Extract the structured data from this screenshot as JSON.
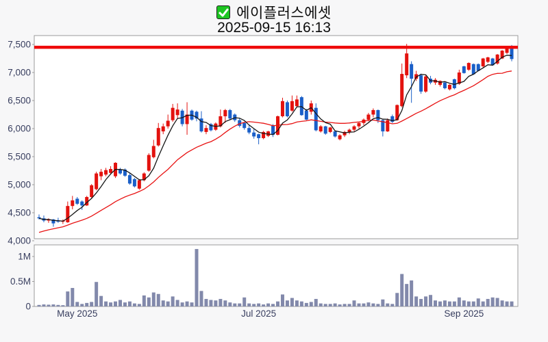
{
  "chart_data": {
    "type": "candlestick",
    "title": "에이플러스에셋",
    "timestamp": "2025-09-15 16:13",
    "checkbox_checked": true,
    "price_axis": {
      "ticks": [
        4000,
        4500,
        5000,
        5500,
        6000,
        6500,
        7000,
        7500
      ],
      "tick_labels": [
        "4,000",
        "4,500",
        "5,000",
        "5,500",
        "6,000",
        "6,500",
        "7,000",
        "7,500"
      ],
      "min": 4000,
      "max": 7660,
      "grid": false
    },
    "volume_axis": {
      "ticks": [
        {
          "value": 0,
          "label": "0"
        },
        {
          "value": 500000,
          "label": "0.5M"
        },
        {
          "value": 1000000,
          "label": "1M"
        }
      ],
      "max": 1230000
    },
    "x_ticks": [
      {
        "index": 8,
        "label": "May 2025"
      },
      {
        "index": 46,
        "label": "Jul 2025"
      },
      {
        "index": 89,
        "label": "Sep 2025"
      }
    ],
    "horizontal_line": {
      "value": 7450,
      "color": "#ee0a0a"
    },
    "moving_averages": {
      "short": {
        "period": 5,
        "color": "#151515"
      },
      "long": {
        "period": 20,
        "color": "#e81212",
        "left_anchor": 4150
      }
    },
    "colors": {
      "up_candle": "#e3120e",
      "down_candle": "#1a5fc8",
      "volume_bar": "#8289ab",
      "axis_label": "#373d5e",
      "panel_border": "#9b9b9b",
      "panel_bg": "#ffffff",
      "page_bg": "#f7f7f8"
    },
    "candles_columns": [
      "date",
      "open",
      "high",
      "low",
      "close",
      "volume"
    ],
    "candles": [
      [
        "2025-04-21",
        4420,
        4470,
        4380,
        4400,
        30000
      ],
      [
        "2025-04-22",
        4400,
        4450,
        4330,
        4360,
        40000
      ],
      [
        "2025-04-23",
        4360,
        4400,
        4320,
        4380,
        35000
      ],
      [
        "2025-04-24",
        4380,
        4390,
        4250,
        4310,
        40000
      ],
      [
        "2025-04-25",
        4360,
        4410,
        4320,
        4340,
        30000
      ],
      [
        "2025-04-28",
        4340,
        4380,
        4300,
        4360,
        25000
      ],
      [
        "2025-04-29",
        4330,
        4700,
        4320,
        4620,
        300000
      ],
      [
        "2025-04-30",
        4620,
        4800,
        4560,
        4720,
        370000
      ],
      [
        "2025-05-02",
        4750,
        4780,
        4640,
        4660,
        90000
      ],
      [
        "2025-05-07",
        4700,
        4720,
        4550,
        4630,
        50000
      ],
      [
        "2025-05-08",
        4630,
        4800,
        4620,
        4780,
        70000
      ],
      [
        "2025-05-09",
        4780,
        5010,
        4760,
        4990,
        90000
      ],
      [
        "2025-05-12",
        4920,
        5230,
        4900,
        5200,
        490000
      ],
      [
        "2025-05-13",
        5150,
        5280,
        5080,
        5230,
        210000
      ],
      [
        "2025-05-14",
        5180,
        5300,
        5150,
        5260,
        100000
      ],
      [
        "2025-05-15",
        5210,
        5330,
        5180,
        5280,
        80000
      ],
      [
        "2025-05-16",
        5150,
        5400,
        5120,
        5390,
        100000
      ],
      [
        "2025-05-19",
        5270,
        5300,
        5180,
        5200,
        130000
      ],
      [
        "2025-05-20",
        5270,
        5290,
        5140,
        5160,
        80000
      ],
      [
        "2025-05-21",
        5170,
        5200,
        5000,
        5020,
        100000
      ],
      [
        "2025-05-22",
        5100,
        5120,
        4950,
        4970,
        60000
      ],
      [
        "2025-05-23",
        4930,
        5100,
        4910,
        5080,
        50000
      ],
      [
        "2025-05-26",
        5080,
        5220,
        5060,
        5200,
        220000
      ],
      [
        "2025-05-27",
        5250,
        5560,
        5230,
        5530,
        180000
      ],
      [
        "2025-05-28",
        5490,
        5800,
        5470,
        5690,
        280000
      ],
      [
        "2025-05-29",
        5700,
        6100,
        5680,
        6010,
        250000
      ],
      [
        "2025-05-30",
        5950,
        6090,
        5900,
        6040,
        120000
      ],
      [
        "2025-06-02",
        6040,
        6250,
        6000,
        6140,
        100000
      ],
      [
        "2025-06-04",
        6150,
        6440,
        6120,
        6370,
        200000
      ],
      [
        "2025-06-05",
        6240,
        6450,
        6180,
        6340,
        130000
      ],
      [
        "2025-06-09",
        6320,
        6350,
        6040,
        6080,
        80000
      ],
      [
        "2025-06-10",
        6080,
        6470,
        5890,
        6250,
        100000
      ],
      [
        "2025-06-11",
        6320,
        6340,
        6140,
        6160,
        80000
      ],
      [
        "2025-06-12",
        6300,
        6320,
        6130,
        6180,
        1150000
      ],
      [
        "2025-06-13",
        6180,
        6310,
        5930,
        5950,
        310000
      ],
      [
        "2025-06-16",
        5940,
        6060,
        5900,
        6010,
        150000
      ],
      [
        "2025-06-17",
        6080,
        6100,
        5950,
        5970,
        130000
      ],
      [
        "2025-06-18",
        5980,
        6110,
        5960,
        6090,
        120000
      ],
      [
        "2025-06-19",
        6040,
        6340,
        6020,
        6220,
        150000
      ],
      [
        "2025-06-20",
        6220,
        6350,
        6100,
        6330,
        120000
      ],
      [
        "2025-06-23",
        6330,
        6350,
        6150,
        6180,
        80000
      ],
      [
        "2025-06-24",
        6250,
        6270,
        6120,
        6150,
        60000
      ],
      [
        "2025-06-25",
        6150,
        6180,
        6020,
        6050,
        60000
      ],
      [
        "2025-06-26",
        6100,
        6120,
        5980,
        6010,
        180000
      ],
      [
        "2025-06-27",
        6010,
        6060,
        5900,
        5930,
        60000
      ],
      [
        "2025-06-30",
        5930,
        5990,
        5820,
        5860,
        50000
      ],
      [
        "2025-07-01",
        5900,
        5910,
        5720,
        5830,
        60000
      ],
      [
        "2025-07-02",
        5830,
        5960,
        5810,
        5940,
        40000
      ],
      [
        "2025-07-03",
        5870,
        5960,
        5850,
        5950,
        60000
      ],
      [
        "2025-07-04",
        6050,
        6080,
        5850,
        5890,
        50000
      ],
      [
        "2025-07-07",
        5890,
        6230,
        5880,
        6220,
        100000
      ],
      [
        "2025-07-08",
        6220,
        6550,
        6200,
        6490,
        240000
      ],
      [
        "2025-07-09",
        6470,
        6500,
        6200,
        6220,
        120000
      ],
      [
        "2025-07-10",
        6320,
        6590,
        6300,
        6490,
        170000
      ],
      [
        "2025-07-11",
        6400,
        6590,
        6380,
        6520,
        120000
      ],
      [
        "2025-07-14",
        6560,
        6580,
        6230,
        6240,
        100000
      ],
      [
        "2025-07-15",
        6320,
        6350,
        6150,
        6160,
        70000
      ],
      [
        "2025-07-16",
        6300,
        6500,
        6250,
        6450,
        90000
      ],
      [
        "2025-07-17",
        6370,
        6450,
        5950,
        5970,
        150000
      ],
      [
        "2025-07-18",
        5950,
        6060,
        5930,
        6040,
        60000
      ],
      [
        "2025-07-21",
        6040,
        6050,
        5890,
        5910,
        50000
      ],
      [
        "2025-07-22",
        5940,
        6030,
        5920,
        6020,
        50000
      ],
      [
        "2025-07-23",
        5950,
        5960,
        5840,
        5860,
        60000
      ],
      [
        "2025-07-24",
        5810,
        5900,
        5790,
        5880,
        40000
      ],
      [
        "2025-07-25",
        5880,
        5960,
        5850,
        5940,
        50000
      ],
      [
        "2025-07-28",
        5940,
        6000,
        5900,
        5980,
        50000
      ],
      [
        "2025-07-29",
        5980,
        6060,
        5950,
        6040,
        120000
      ],
      [
        "2025-07-30",
        6040,
        6120,
        6000,
        6100,
        60000
      ],
      [
        "2025-07-31",
        6100,
        6180,
        6060,
        6160,
        60000
      ],
      [
        "2025-08-01",
        6160,
        6280,
        6130,
        6250,
        80000
      ],
      [
        "2025-08-04",
        6250,
        6360,
        6200,
        6330,
        60000
      ],
      [
        "2025-08-05",
        6330,
        6340,
        6100,
        6150,
        50000
      ],
      [
        "2025-08-06",
        6150,
        6160,
        5860,
        5950,
        140000
      ],
      [
        "2025-08-07",
        5950,
        6180,
        5940,
        6150,
        60000
      ],
      [
        "2025-08-08",
        6220,
        6250,
        6100,
        6120,
        50000
      ],
      [
        "2025-08-11",
        6150,
        6430,
        6140,
        6420,
        270000
      ],
      [
        "2025-08-12",
        6400,
        7160,
        6380,
        6975,
        650000
      ],
      [
        "2025-08-13",
        6950,
        7510,
        6900,
        7340,
        450000
      ],
      [
        "2025-08-14",
        7150,
        7200,
        6460,
        6890,
        520000
      ],
      [
        "2025-08-18",
        6890,
        7030,
        6850,
        6970,
        200000
      ],
      [
        "2025-08-19",
        6950,
        6980,
        6620,
        6660,
        150000
      ],
      [
        "2025-08-20",
        6660,
        6950,
        6640,
        6930,
        200000
      ],
      [
        "2025-08-21",
        6890,
        6940,
        6790,
        6820,
        230000
      ],
      [
        "2025-08-22",
        6820,
        6900,
        6780,
        6870,
        120000
      ],
      [
        "2025-08-25",
        6780,
        6860,
        6750,
        6850,
        100000
      ],
      [
        "2025-08-26",
        6820,
        6840,
        6700,
        6720,
        120000
      ],
      [
        "2025-08-27",
        6700,
        6790,
        6680,
        6780,
        100000
      ],
      [
        "2025-08-28",
        6880,
        6890,
        6700,
        6720,
        100000
      ],
      [
        "2025-08-29",
        6800,
        7050,
        6780,
        7000,
        180000
      ],
      [
        "2025-09-01",
        7110,
        7120,
        6980,
        6990,
        120000
      ],
      [
        "2025-09-02",
        7050,
        7180,
        7030,
        7170,
        100000
      ],
      [
        "2025-09-03",
        7150,
        7160,
        6960,
        6970,
        100000
      ],
      [
        "2025-09-04",
        7150,
        7160,
        7020,
        7030,
        160000
      ],
      [
        "2025-09-05",
        7110,
        7260,
        7090,
        7250,
        100000
      ],
      [
        "2025-09-08",
        7190,
        7280,
        7170,
        7270,
        150000
      ],
      [
        "2025-09-09",
        7250,
        7260,
        7120,
        7130,
        180000
      ],
      [
        "2025-09-10",
        7160,
        7330,
        7140,
        7320,
        170000
      ],
      [
        "2025-09-11",
        7250,
        7400,
        7240,
        7390,
        120000
      ],
      [
        "2025-09-12",
        7350,
        7440,
        7330,
        7430,
        100000
      ],
      [
        "2025-09-15",
        7450,
        7490,
        7200,
        7240,
        100000
      ]
    ]
  }
}
